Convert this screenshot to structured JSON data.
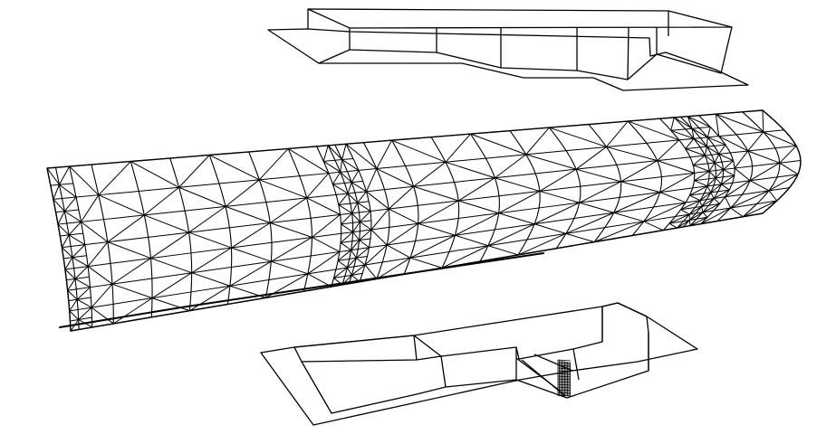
{
  "figure": {
    "background": "#ffffff",
    "line_color": "#000000",
    "parts": [
      {
        "id": "top-plate",
        "kind": "wireframe"
      },
      {
        "id": "tube",
        "kind": "triangulated-mesh",
        "refinement_bands": 2
      },
      {
        "id": "bottom-plate",
        "kind": "wireframe"
      }
    ]
  }
}
